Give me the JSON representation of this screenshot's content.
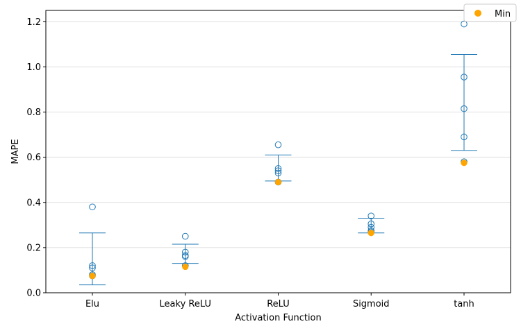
{
  "chart_data": {
    "type": "scatter",
    "xlabel": "Activation Function",
    "ylabel": "MAPE",
    "categories": [
      "Elu",
      "Leaky ReLU",
      "ReLU",
      "Sigmoid",
      "tanh"
    ],
    "ylim": [
      0.0,
      1.25
    ],
    "yticks": [
      0.0,
      0.2,
      0.4,
      0.6,
      0.8,
      1.0,
      1.2
    ],
    "ytick_labels": [
      "0.0",
      "0.2",
      "0.4",
      "0.6",
      "0.8",
      "1.0",
      "1.2"
    ],
    "grid": "horizontal",
    "legend": {
      "position": "top-right",
      "entries": [
        "Min"
      ]
    },
    "colors": {
      "points": "#1f77b4",
      "bars": "#1f77b4",
      "min": "#ffa500",
      "grid": "#d3d3d3"
    },
    "points": [
      [
        0.38,
        0.12,
        0.11,
        0.08,
        0.075
      ],
      [
        0.25,
        0.18,
        0.165,
        0.16,
        0.12
      ],
      [
        0.655,
        0.55,
        0.54,
        0.53,
        0.49
      ],
      [
        0.34,
        0.305,
        0.29,
        0.275,
        0.27
      ],
      [
        1.19,
        0.955,
        0.815,
        0.69,
        0.58
      ]
    ],
    "error_bars": [
      {
        "low": 0.035,
        "high": 0.265
      },
      {
        "low": 0.13,
        "high": 0.215
      },
      {
        "low": 0.495,
        "high": 0.61
      },
      {
        "low": 0.265,
        "high": 0.33
      },
      {
        "low": 0.63,
        "high": 1.055
      }
    ],
    "min": [
      0.075,
      0.115,
      0.49,
      0.265,
      0.575
    ]
  }
}
